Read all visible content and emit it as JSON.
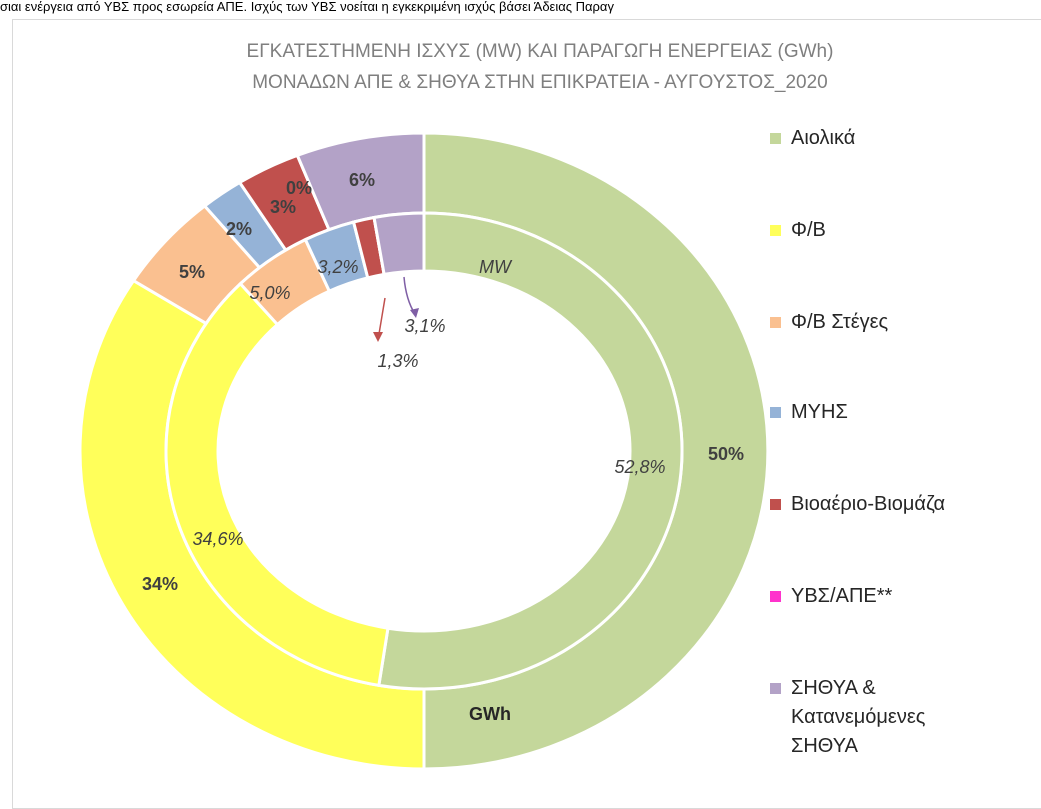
{
  "header_text": "σιαι ενέργεια από ΥΒΣ προς εσωρεία ΑΠΕ. Ισχύς των ΥΒΣ νοείται η εγκεκριμένη ισχύς βάσει Άδειας Παραγ",
  "chart_data": {
    "type": "donut",
    "title": [
      "ΕΓΚΑΤΕΣΤΗΜΕΝΗ ΙΣΧΥΣ (MW) ΚΑΙ ΠΑΡΑΓΩΓΗ ΕΝΕΡΓΕΙΑΣ (GWh)",
      "ΜΟΝΑΔΩΝ ΑΠΕ & ΣΗΘΥΑ ΣΤΗΝ ΕΠΙΚΡΑΤΕΙΑ -  ΑΥΓΟΥΣΤΟΣ_2020"
    ],
    "categories": [
      "Αιολικά",
      "Φ/Β",
      "Φ/Β Στέγες",
      "ΜΥΗΣ",
      "Βιοαέριο-Βιομάζα",
      "ΥΒΣ/ΑΠΕ**",
      "ΣΗΘΥΑ & Κατανεμόμενες ΣΗΘΥΑ"
    ],
    "colors": [
      "#c4d79b",
      "#ffff5a",
      "#fac090",
      "#95b3d7",
      "#c0504d",
      "#ff33cc",
      "#b3a2c7"
    ],
    "series": [
      {
        "name": "GWh",
        "values": [
          50,
          34,
          5,
          2,
          3,
          0,
          6
        ],
        "value_labels": [
          "50%",
          "34%",
          "5%",
          "2%",
          "3%",
          "0%",
          "6%"
        ]
      },
      {
        "name": "MW",
        "values": [
          52.8,
          34.6,
          5.0,
          3.2,
          1.3,
          0,
          3.1
        ],
        "value_labels": [
          "52,8%",
          "34,6%",
          "5,0%",
          "3,2%",
          "1,3%",
          null,
          "3,1%"
        ]
      }
    ]
  }
}
